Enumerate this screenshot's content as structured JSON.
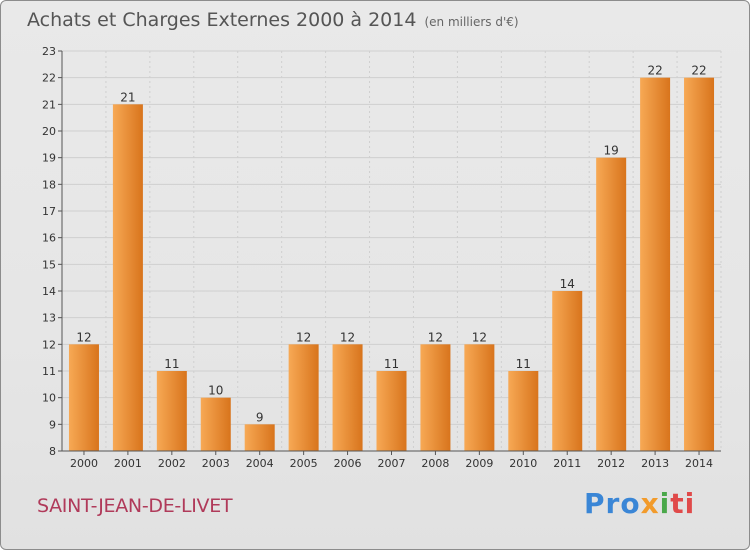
{
  "header": {
    "title": "Achats et Charges Externes 2000 à 2014",
    "subtitle": "(en milliers d'€)"
  },
  "footer": {
    "place": "SAINT-JEAN-DE-LIVET",
    "logo": {
      "p1": "Pro",
      "p2": "x",
      "p3": "i",
      "p4": "ti"
    }
  },
  "colors": {
    "bar_light": "#f7a955",
    "bar_dark": "#d8741c",
    "grid": "#cfcfcf"
  },
  "chart_data": {
    "type": "bar",
    "categories": [
      "2000",
      "2001",
      "2002",
      "2003",
      "2004",
      "2005",
      "2006",
      "2007",
      "2008",
      "2009",
      "2010",
      "2011",
      "2012",
      "2013",
      "2014"
    ],
    "values": [
      12,
      21,
      11,
      10,
      9,
      12,
      12,
      11,
      12,
      12,
      11,
      14,
      19,
      22,
      22
    ],
    "ylim": [
      8,
      23
    ],
    "yticks": [
      8,
      9,
      10,
      11,
      12,
      13,
      14,
      15,
      16,
      17,
      18,
      19,
      20,
      21,
      22,
      23
    ],
    "grid": true
  }
}
